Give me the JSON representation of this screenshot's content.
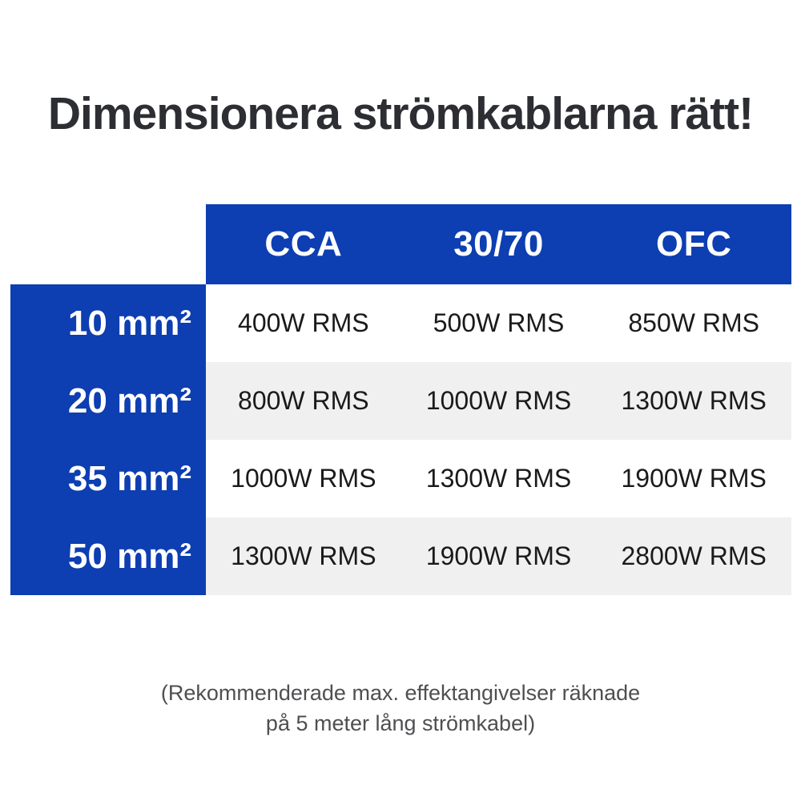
{
  "title": "Dimensionera strömkablarna rätt!",
  "colors": {
    "accent_blue": "#0d3eb2",
    "stripe_gray": "#f0f0f0",
    "title_text": "#2d2e33",
    "cell_text": "#1a1a1a",
    "footnote_text": "#4f4f52"
  },
  "table": {
    "columns": [
      "CCA",
      "30/70",
      "OFC"
    ],
    "rows": [
      {
        "label": "10 mm²",
        "values": [
          "400W RMS",
          "500W RMS",
          "850W RMS"
        ]
      },
      {
        "label": "20 mm²",
        "values": [
          "800W RMS",
          "1000W RMS",
          "1300W RMS"
        ]
      },
      {
        "label": "35 mm²",
        "values": [
          "1000W RMS",
          "1300W RMS",
          "1900W RMS"
        ]
      },
      {
        "label": "50 mm²",
        "values": [
          "1300W RMS",
          "1900W RMS",
          "2800W RMS"
        ]
      }
    ]
  },
  "footnote": {
    "line1": "(Rekommenderade max. effektangivelser räknade",
    "line2": "på 5 meter lång strömkabel)"
  },
  "chart_data": {
    "type": "table",
    "title": "Dimensionera strömkablarna rätt!",
    "row_header_unit": "mm²",
    "columns": [
      "CCA",
      "30/70",
      "OFC"
    ],
    "row_labels": [
      "10 mm²",
      "20 mm²",
      "35 mm²",
      "50 mm²"
    ],
    "cells": [
      [
        "400W RMS",
        "500W RMS",
        "850W RMS"
      ],
      [
        "800W RMS",
        "1000W RMS",
        "1300W RMS"
      ],
      [
        "1000W RMS",
        "1300W RMS",
        "1900W RMS"
      ],
      [
        "1300W RMS",
        "1900W RMS",
        "2800W RMS"
      ]
    ],
    "values_watts_rms": [
      [
        400,
        500,
        850
      ],
      [
        800,
        1000,
        1300
      ],
      [
        1000,
        1300,
        1900
      ],
      [
        1300,
        1900,
        2800
      ]
    ],
    "note": "(Rekommenderade max. effektangivelser räknade på 5 meter lång strömkabel)"
  }
}
